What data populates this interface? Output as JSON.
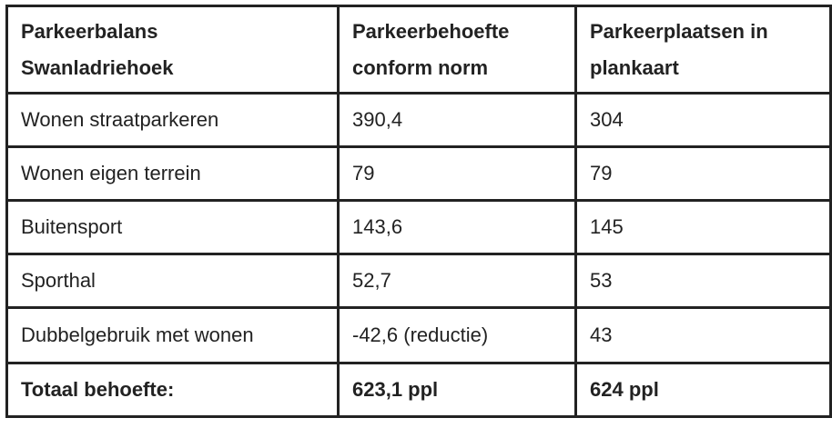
{
  "table": {
    "header": [
      "Parkeerbalans Swanladriehoek",
      "Parkeerbehoefte conform norm",
      "Parkeerplaatsen in plankaart"
    ],
    "rows": [
      [
        "Wonen straatparkeren",
        "390,4",
        "304"
      ],
      [
        "Wonen eigen terrein",
        "79",
        "79"
      ],
      [
        "Buitensport",
        "143,6",
        "145"
      ],
      [
        "Sporthal",
        "52,7",
        "53"
      ],
      [
        "Dubbelgebruik met wonen",
        "-42,6 (reductie)",
        "43"
      ],
      [
        "Totaal behoefte:",
        "623,1 ppl",
        "624 ppl"
      ]
    ]
  }
}
